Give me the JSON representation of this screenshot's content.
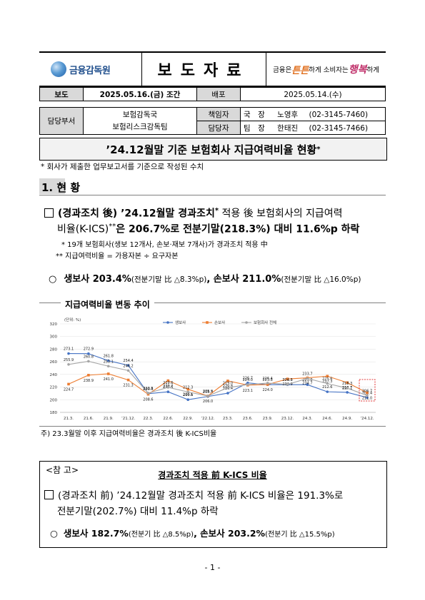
{
  "header": {
    "logo_text": "금융감독원",
    "press_title": "보도자료",
    "slogan_pre": "금융은",
    "slogan_big1": "튼튼",
    "slogan_mid": "하게 소비자는",
    "slogan_big2": "행복",
    "slogan_post": "하게"
  },
  "release": {
    "embargo_label": "보도",
    "embargo_value": "2025.05.16.(금) 조간",
    "distribution_label": "배포",
    "distribution_value": "2025.05.14.(수)"
  },
  "contacts": {
    "dept_label": "담당부서",
    "dept_1": "보험감독국",
    "dept_2": "보험리스크감독팀",
    "rows": [
      {
        "role": "책임자",
        "title": "국　장",
        "name": "노영후",
        "phone": "(02-3145-7460)"
      },
      {
        "role": "담당자",
        "title": "팀　장",
        "name": "한태진",
        "phone": "(02-3145-7466)"
      }
    ]
  },
  "title": {
    "main": "’24.12월말 기준 보험회사 지급여력비율 현황",
    "sup": "*",
    "footnote": "* 회사가 제출한 업무보고서를 기준으로 작성된 수치"
  },
  "section1": {
    "heading": "1. 현  황",
    "bullet1_a": "(경과조치 後) ’24.12월말 경과조치",
    "bullet1_sup1": "*",
    "bullet1_b": " 적용 後 보험회사의 지급여력",
    "bullet1_c": "비율(K-ICS)",
    "bullet1_sup2": "**",
    "bullet1_d": "은 206.7%로 전분기말(218.3%) 대비 11.6%p 하락",
    "note1": "* 19개 보험회사(생보 12개사, 손보·재보 7개사)가 경과조치 적용 中",
    "note2": "** 지급여력비율 = 가용자본 ÷ 요구자본",
    "bullet2_a": "생보사 203.4%",
    "bullet2_b": "(전분기말 比 △8.3%p)",
    "bullet2_c": ", 손보사 211.0%",
    "bullet2_d": "(전분기말 比 △16.0%p)"
  },
  "chart_data": {
    "type": "line",
    "title": "지급여력비율 변동 추이",
    "ylabel": "(단위: %)",
    "categories": [
      "21.3.",
      "21.6.",
      "21.9.",
      "’21.12.",
      "22.3.",
      "22.6.",
      "22.9.",
      "’22.12.",
      "23.3.",
      "23.6.",
      "23.9.",
      "23.12.",
      "24.3.",
      "24.6.",
      "24.9.",
      "’24.12."
    ],
    "ylim": [
      180,
      320
    ],
    "yticks": [
      180,
      200,
      220,
      240,
      260,
      280,
      300,
      320
    ],
    "series": [
      {
        "name": "생보사",
        "color": "#4472c4",
        "values": [
          273.1,
          272.9,
          261.8,
          254.4,
          209.6,
          212.5,
          200.1,
          205.1,
          210.4,
          226.7,
          223.8,
          223.8,
          223.8,
          212.6,
          211.7,
          203.4
        ]
      },
      {
        "name": "손보사",
        "color": "#ed7d31",
        "values": [
          224.7,
          238.9,
          241.0,
          231.3,
          208.6,
          230.2,
          216.6,
          206.0,
          229.8,
          223.1,
          224.0,
          232.9,
          234.7,
          237.3,
          227.1,
          211.0
        ]
      },
      {
        "name": "보험회사 전체",
        "color": "#a5a5a5",
        "values": [
          255.9,
          260.8,
          253.1,
          246.2,
          210.5,
          219.6,
          212.3,
          205.9,
          219.0,
          224.0,
          226.4,
          224.3,
          233.7,
          225.6,
          218.3,
          206.7
        ]
      }
    ],
    "footnote": "주) 23.3월말 이후 지급여력비율은 경과조치 後 K-ICS비율"
  },
  "note": {
    "label": "<참 고>",
    "title": "경과조치 적용 前 K-ICS 비율",
    "line1": "(경과조치 前) ’24.12월말 경과조치 적용 前 K-ICS 비율은 191.3%로",
    "line2": "전분기말(202.7%) 대비 11.4%p 하락",
    "line3_a": "생보사 182.7%",
    "line3_b": "(전분기 比 △8.5%p)",
    "line3_c": ", 손보사 203.2%",
    "line3_d": "(전분기 比 △15.5%p)"
  },
  "page_number": "- 1 -"
}
